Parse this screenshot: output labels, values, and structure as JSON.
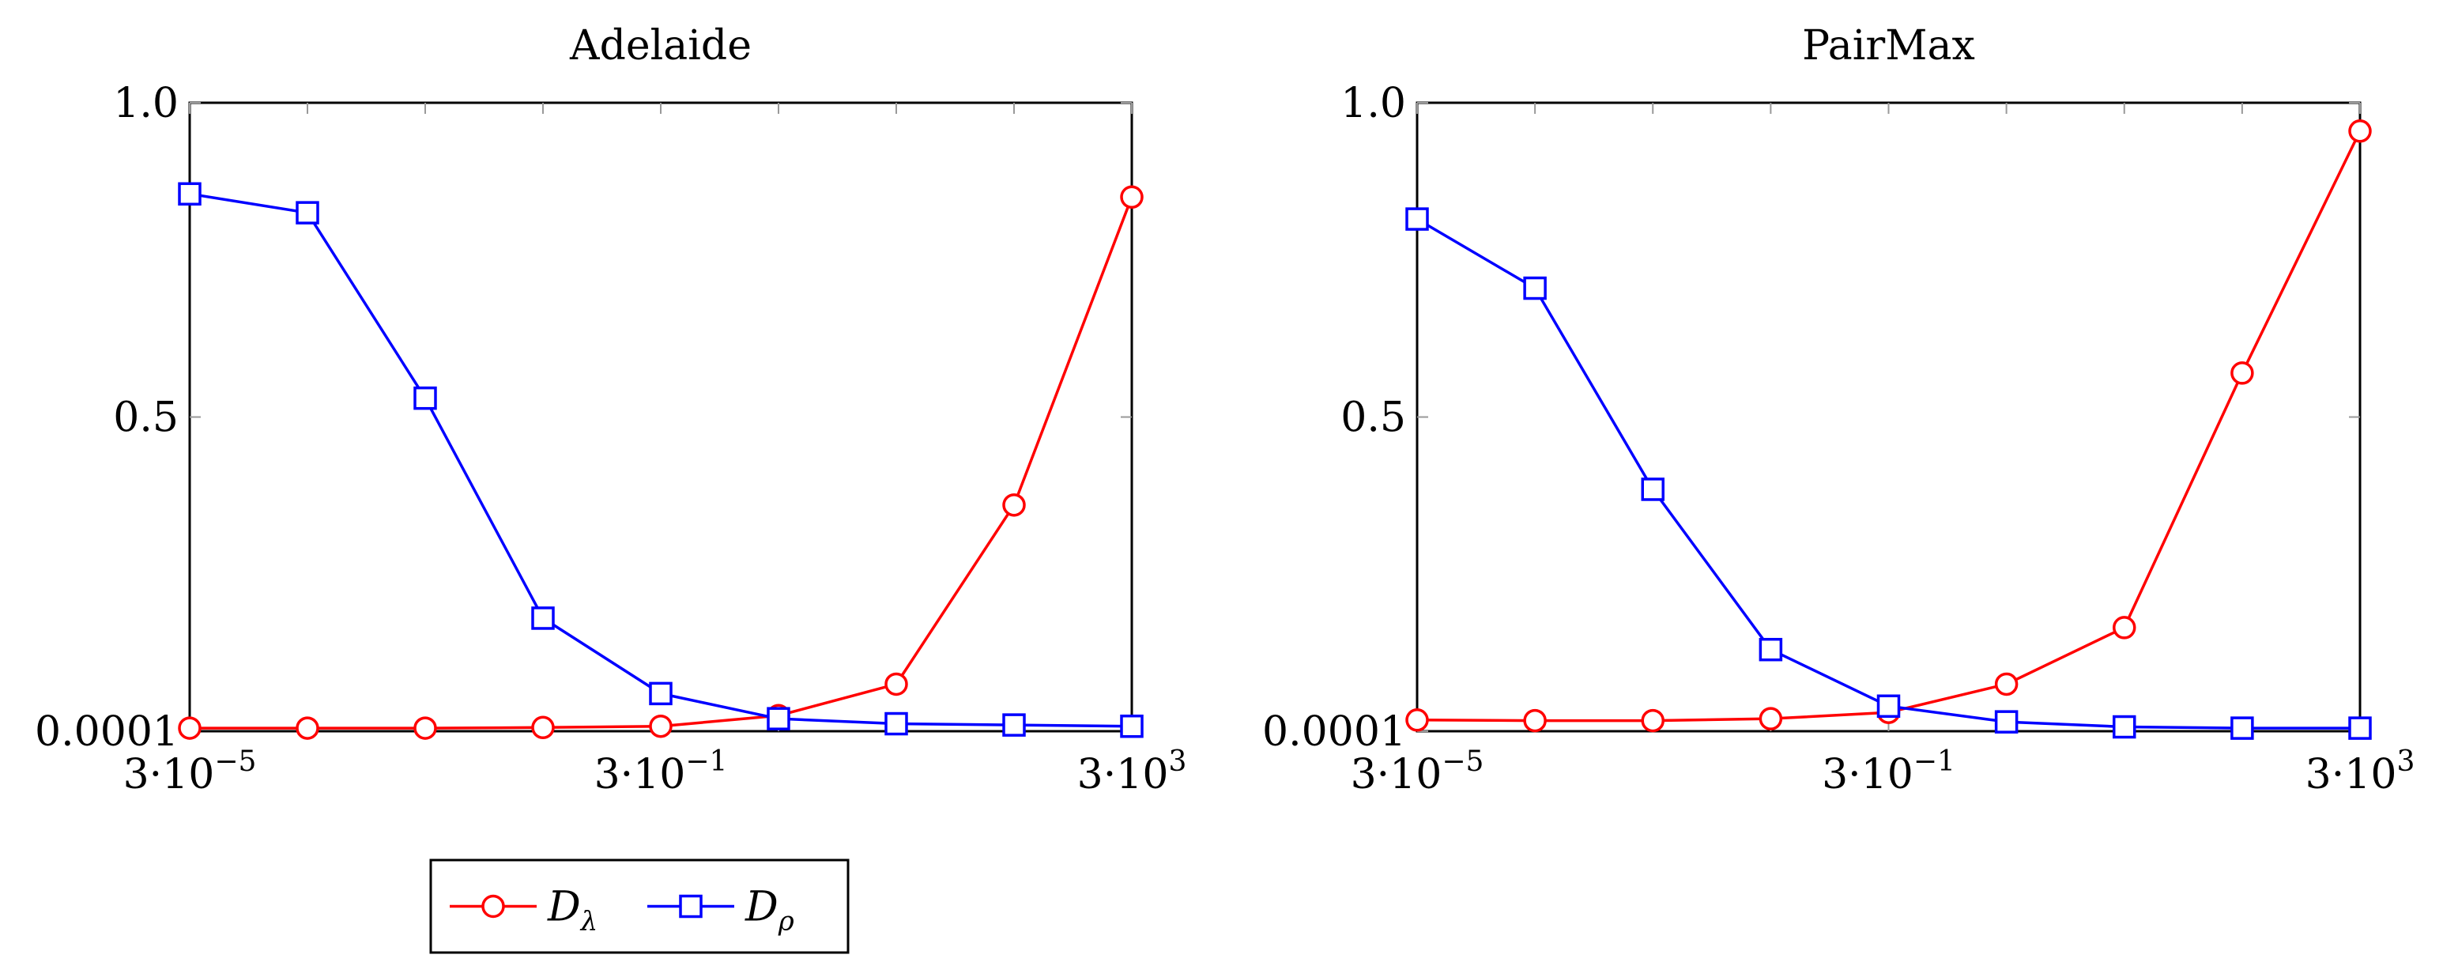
{
  "chart_data": [
    {
      "type": "line",
      "title": "Adelaide",
      "xscale": "log",
      "xlim": [
        3e-05,
        3000
      ],
      "ylim": [
        0.0001,
        1.0
      ],
      "grid": false,
      "x": [
        3e-05,
        0.0003,
        0.003,
        0.03,
        0.3,
        3,
        30,
        300,
        3000
      ],
      "xtick_labels": [
        "3·10",
        "3·10",
        "3·10"
      ],
      "xtick_exponents": [
        "−5",
        "−1",
        "3"
      ],
      "xtick_values": [
        3e-05,
        0.3,
        3000
      ],
      "ytick_labels": [
        "0.0001",
        "0.5",
        "1.0"
      ],
      "ytick_values": [
        0.0001,
        0.5,
        1.0
      ],
      "series": [
        {
          "name": "D_λ",
          "color": "#ff0000",
          "marker": "circle",
          "values": [
            0.005,
            0.005,
            0.005,
            0.006,
            0.008,
            0.025,
            0.075,
            0.36,
            0.85
          ]
        },
        {
          "name": "D_ρ",
          "color": "#0000ff",
          "marker": "square",
          "values": [
            0.855,
            0.825,
            0.53,
            0.18,
            0.06,
            0.02,
            0.012,
            0.01,
            0.008
          ]
        }
      ]
    },
    {
      "type": "line",
      "title": "PairMax",
      "xscale": "log",
      "xlim": [
        3e-05,
        3000
      ],
      "ylim": [
        0.0001,
        1.0
      ],
      "grid": false,
      "x": [
        3e-05,
        0.0003,
        0.003,
        0.03,
        0.3,
        3,
        30,
        300,
        3000
      ],
      "xtick_labels": [
        "3·10",
        "3·10",
        "3·10"
      ],
      "xtick_exponents": [
        "−5",
        "−1",
        "3"
      ],
      "xtick_values": [
        3e-05,
        0.3,
        3000
      ],
      "ytick_labels": [
        "0.0001",
        "0.5",
        "1.0"
      ],
      "ytick_values": [
        0.0001,
        0.5,
        1.0
      ],
      "series": [
        {
          "name": "D_λ",
          "color": "#ff0000",
          "marker": "circle",
          "values": [
            0.018,
            0.017,
            0.017,
            0.02,
            0.03,
            0.075,
            0.165,
            0.57,
            0.955
          ]
        },
        {
          "name": "D_ρ",
          "color": "#0000ff",
          "marker": "square",
          "values": [
            0.815,
            0.705,
            0.385,
            0.13,
            0.04,
            0.015,
            0.007,
            0.005,
            0.005
          ]
        }
      ]
    }
  ],
  "legend": {
    "placement": "bottom-left",
    "entries": [
      {
        "symbol": "D",
        "subscript": "λ",
        "color": "#ff0000",
        "marker": "circle"
      },
      {
        "symbol": "D",
        "subscript": "ρ",
        "color": "#0000ff",
        "marker": "square"
      }
    ]
  }
}
